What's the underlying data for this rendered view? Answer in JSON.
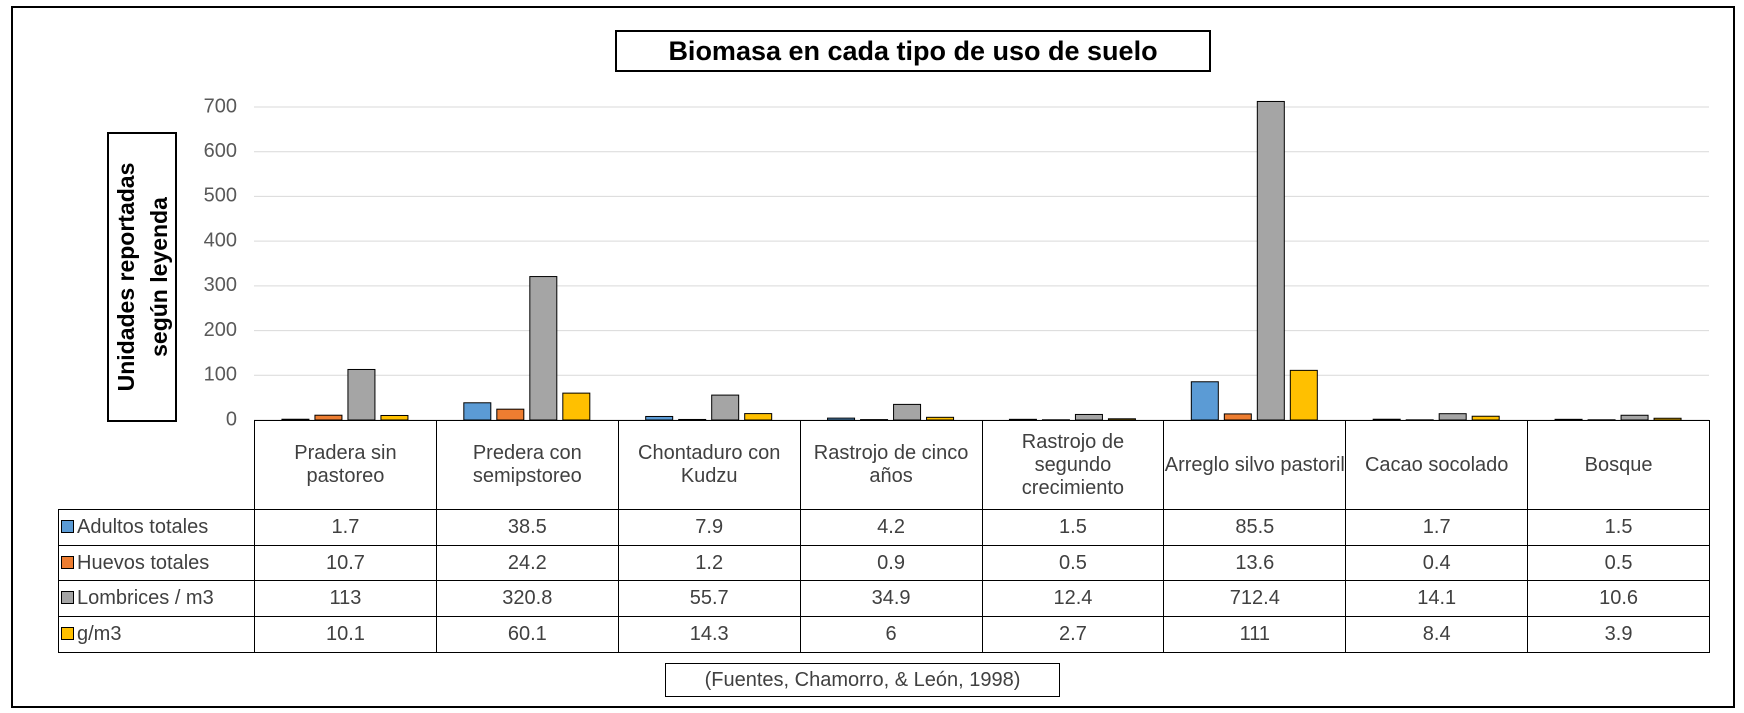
{
  "chart_data": {
    "type": "bar",
    "title": "Biomasa en cada tipo de uso de suelo",
    "y_label": "Unidades reportadas según leyenda",
    "source": "(Fuentes, Chamorro, & León, 1998)",
    "categories": [
      "Pradera sin pastoreo",
      "Predera con semipstoreo",
      "Chontaduro con Kudzu",
      "Rastrojo de cinco años",
      "Rastrojo de segundo crecimiento",
      "Arreglo silvo pastoril",
      "Cacao socolado",
      "Bosque"
    ],
    "series": [
      {
        "name": "Adultos totales",
        "color": "#5b9bd5",
        "values": [
          1.7,
          38.5,
          7.9,
          4.2,
          1.5,
          85.5,
          1.7,
          1.5
        ]
      },
      {
        "name": "Huevos totales",
        "color": "#ed7d31",
        "values": [
          10.7,
          24.2,
          1.2,
          0.9,
          0.5,
          13.6,
          0.4,
          0.5
        ]
      },
      {
        "name": "Lombrices / m3",
        "color": "#a5a5a5",
        "values": [
          113,
          320.8,
          55.7,
          34.9,
          12.4,
          712.4,
          14.1,
          10.6
        ]
      },
      {
        "name": "g/m3",
        "color": "#ffc000",
        "values": [
          10.1,
          60.1,
          14.3,
          6,
          2.7,
          111,
          8.4,
          3.9
        ]
      }
    ],
    "ylim": [
      0,
      700
    ],
    "yticks": [
      0,
      100,
      200,
      300,
      400,
      500,
      600,
      700
    ],
    "grid": true
  }
}
